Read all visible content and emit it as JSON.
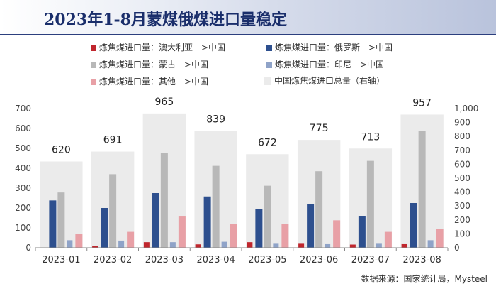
{
  "title": "2023年1-8月蒙煤俄煤进口量稳定",
  "source": "数据来源：国家统计局，Mysteel",
  "chart_data": {
    "type": "bar",
    "categories": [
      "2023-01",
      "2023-02",
      "2023-03",
      "2023-04",
      "2023-05",
      "2023-06",
      "2023-07",
      "2023-08"
    ],
    "series": [
      {
        "name": "炼焦煤进口量：澳大利亚—>中国",
        "axis": "left",
        "color": "#c0262d",
        "values": [
          0,
          8,
          28,
          17,
          28,
          20,
          16,
          18
        ]
      },
      {
        "name": "炼焦煤进口量：俄罗斯—>中国",
        "axis": "left",
        "color": "#2d4f8e",
        "values": [
          238,
          200,
          275,
          258,
          195,
          218,
          160,
          225
        ]
      },
      {
        "name": "炼焦煤进口量：蒙古—>中国",
        "axis": "left",
        "color": "#b8b8b8",
        "values": [
          278,
          370,
          478,
          412,
          312,
          385,
          437,
          588
        ]
      },
      {
        "name": "炼焦煤进口量：印尼—>中国",
        "axis": "left",
        "color": "#8fa3c8",
        "values": [
          38,
          36,
          28,
          30,
          20,
          18,
          20,
          38
        ]
      },
      {
        "name": "炼焦煤进口量：其他—>中国",
        "axis": "left",
        "color": "#e8a0a6",
        "values": [
          68,
          80,
          157,
          120,
          120,
          138,
          80,
          93
        ]
      },
      {
        "name": "中国炼焦煤进口总量（右轴）",
        "axis": "right",
        "color": "#ebebeb",
        "values": [
          620,
          691,
          965,
          839,
          672,
          775,
          713,
          957
        ]
      }
    ],
    "total_labels": [
      "620",
      "691",
      "965",
      "839",
      "672",
      "775",
      "713",
      "957"
    ],
    "y_left": {
      "min": 0,
      "max": 700,
      "ticks": [
        "0",
        "100",
        "200",
        "300",
        "400",
        "500",
        "600",
        "700"
      ]
    },
    "y_right": {
      "min": 0,
      "max": 1000,
      "ticks": [
        "0",
        "100",
        "200",
        "300",
        "400",
        "500",
        "600",
        "700",
        "800",
        "900",
        "1,000"
      ]
    },
    "grid": false,
    "legend_position": "top"
  }
}
